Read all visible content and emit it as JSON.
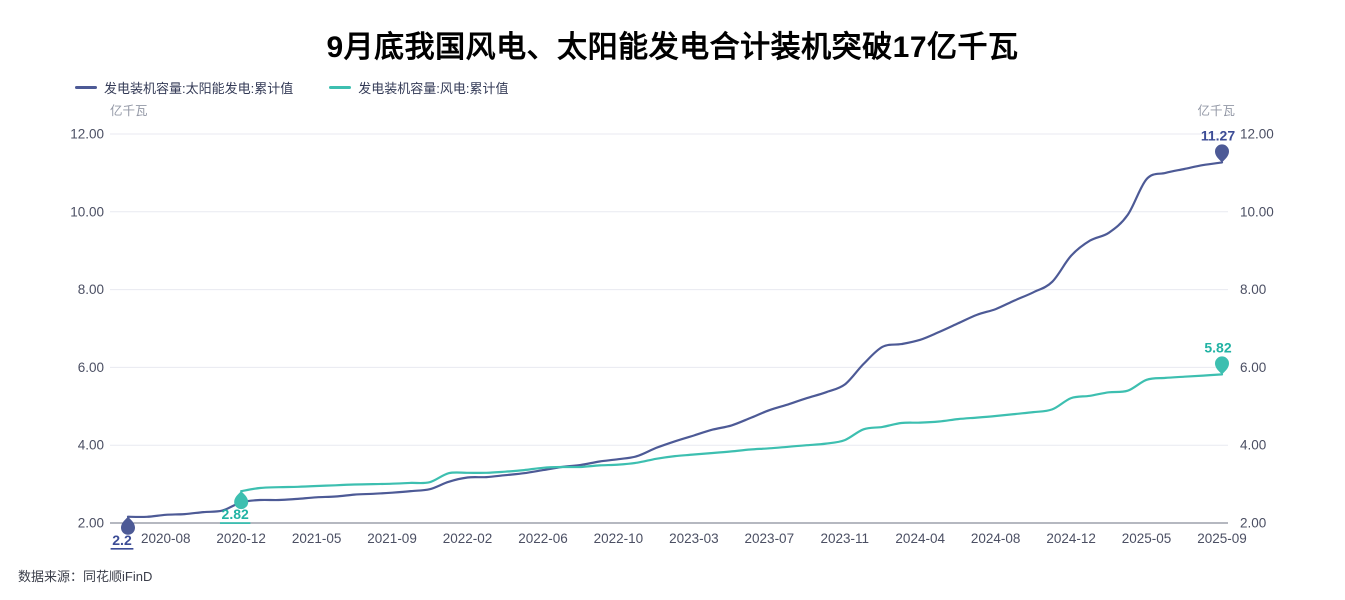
{
  "title": {
    "text": "9月底我国风电、太阳能发电合计装机突破17亿千瓦"
  },
  "legend": {
    "items": [
      {
        "label": "发电装机容量:太阳能发电:累计值",
        "color": "#4d5a96"
      },
      {
        "label": "发电装机容量:风电:累计值",
        "color": "#3dbfb0"
      }
    ]
  },
  "axes": {
    "unit_left": "亿千瓦",
    "unit_right": "亿千瓦"
  },
  "footer": {
    "source": "数据来源：同花顺iFinD"
  },
  "colors": {
    "grid_line": "#e8eaf1",
    "axis_line": "#6b7080",
    "tick_label": "#4b4f63",
    "background": "#ffffff"
  },
  "chart_data": {
    "type": "line",
    "title": "9月底我国风电、太阳能发电合计装机突破17亿千瓦",
    "ylabel": "亿千瓦",
    "ylim": [
      2,
      12
    ],
    "y_ticks": [
      12,
      10,
      8,
      6,
      4,
      2
    ],
    "grid": "horizontal-only",
    "legend_position": "top-left",
    "dual_y_axis": true,
    "categories": [
      "2020-06",
      "2020-07",
      "2020-08",
      "2020-09",
      "2020-10",
      "2020-11",
      "2020-12",
      "2021-02",
      "2021-03",
      "2021-04",
      "2021-05",
      "2021-06",
      "2021-07",
      "2021-08",
      "2021-09",
      "2021-10",
      "2021-11",
      "2021-12",
      "2022-02",
      "2022-03",
      "2022-04",
      "2022-05",
      "2022-06",
      "2022-07",
      "2022-08",
      "2022-09",
      "2022-10",
      "2022-11",
      "2022-12",
      "2023-02",
      "2023-03",
      "2023-04",
      "2023-05",
      "2023-06",
      "2023-07",
      "2023-08",
      "2023-09",
      "2023-10",
      "2023-11",
      "2023-12",
      "2024-02",
      "2024-03",
      "2024-04",
      "2024-05",
      "2024-06",
      "2024-07",
      "2024-08",
      "2024-09",
      "2024-10",
      "2024-11",
      "2024-12",
      "2025-02",
      "2025-03",
      "2025-04",
      "2025-05",
      "2025-06",
      "2025-07",
      "2025-08",
      "2025-09"
    ],
    "x_tick_indices": [
      2,
      6,
      10,
      14,
      18,
      22,
      26,
      30,
      34,
      38,
      42,
      46,
      50,
      54,
      58
    ],
    "x_tick_labels": [
      "2020-08",
      "2020-12",
      "2021-05",
      "2021-09",
      "2022-02",
      "2022-06",
      "2022-10",
      "2023-03",
      "2023-07",
      "2023-11",
      "2024-04",
      "2024-08",
      "2024-12",
      "2025-05",
      "2025-09"
    ],
    "series": [
      {
        "name": "发电装机容量:太阳能发电:累计值",
        "color": "#4d5a96",
        "label_color": "#3c4c96",
        "start_marker": {
          "label": "2.2",
          "underline": true
        },
        "end_marker": {
          "label": "11.27"
        },
        "values": [
          2.16,
          2.16,
          2.21,
          2.23,
          2.28,
          2.32,
          2.53,
          2.59,
          2.59,
          2.62,
          2.66,
          2.68,
          2.73,
          2.75,
          2.78,
          2.82,
          2.87,
          3.06,
          3.17,
          3.18,
          3.23,
          3.28,
          3.36,
          3.44,
          3.49,
          3.58,
          3.64,
          3.72,
          3.93,
          4.1,
          4.25,
          4.4,
          4.51,
          4.7,
          4.9,
          5.05,
          5.21,
          5.36,
          5.56,
          6.09,
          6.53,
          6.6,
          6.71,
          6.91,
          7.13,
          7.35,
          7.5,
          7.72,
          7.93,
          8.2,
          8.87,
          9.26,
          9.46,
          9.92,
          10.84,
          11.0,
          11.1,
          11.2,
          11.27
        ]
      },
      {
        "name": "发电装机容量:风电:累计值",
        "color": "#3dbfb0",
        "label_color": "#22b3a4",
        "start_marker": {
          "label": "2.82",
          "underline": true
        },
        "end_marker": {
          "label": "5.82"
        },
        "values": [
          null,
          null,
          null,
          null,
          null,
          null,
          2.82,
          2.9,
          2.92,
          2.93,
          2.95,
          2.97,
          2.99,
          3.0,
          3.01,
          3.03,
          3.05,
          3.28,
          3.29,
          3.29,
          3.32,
          3.36,
          3.42,
          3.44,
          3.44,
          3.48,
          3.5,
          3.55,
          3.65,
          3.72,
          3.76,
          3.8,
          3.84,
          3.89,
          3.92,
          3.96,
          4.0,
          4.04,
          4.13,
          4.41,
          4.47,
          4.57,
          4.58,
          4.61,
          4.67,
          4.71,
          4.75,
          4.8,
          4.85,
          4.92,
          5.21,
          5.27,
          5.36,
          5.4,
          5.68,
          5.73,
          5.76,
          5.79,
          5.82
        ]
      }
    ]
  }
}
